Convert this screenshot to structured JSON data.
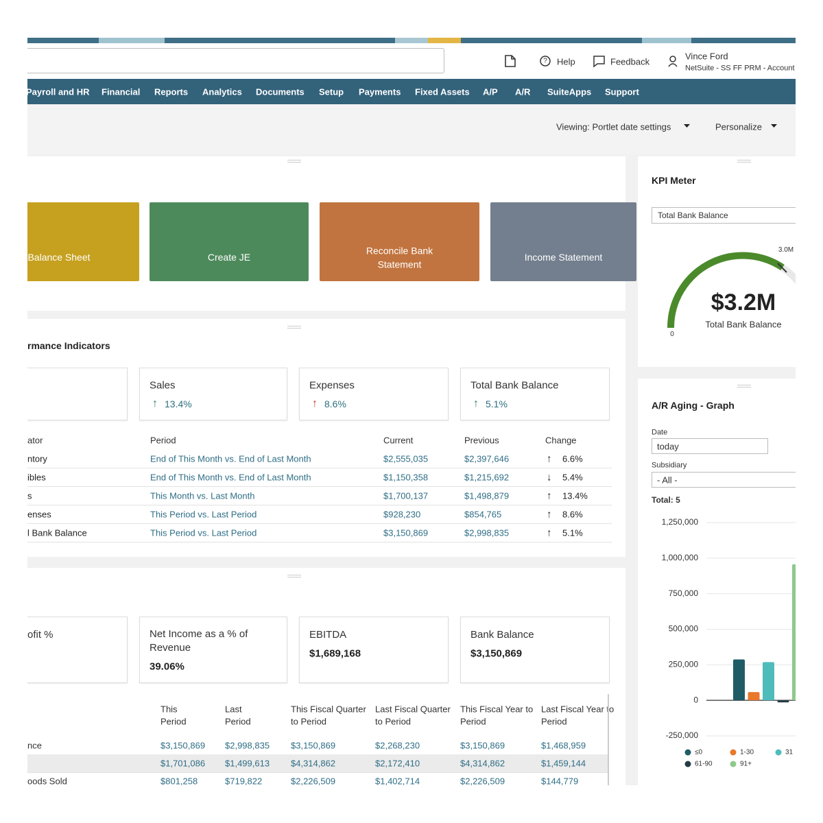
{
  "header": {
    "help": "Help",
    "feedback": "Feedback",
    "user_name": "Vince Ford",
    "account": "NetSuite - SS FF PRM - Account"
  },
  "nav": [
    "Payroll and HR",
    "Financial",
    "Reports",
    "Analytics",
    "Documents",
    "Setup",
    "Payments",
    "Fixed Assets",
    "A/P",
    "A/R",
    "SuiteApps",
    "Support"
  ],
  "toolbar": {
    "viewing": "Viewing: Portlet date settings",
    "personalize": "Personalize"
  },
  "shortcuts": [
    "Balance Sheet",
    "Create JE",
    "Reconcile Bank Statement",
    "Income Statement"
  ],
  "kpi_portlet": {
    "title": "rmance Indicators",
    "cards": [
      {
        "label": "Sales",
        "arrow": "↑",
        "change": "13.4%"
      },
      {
        "label": "Expenses",
        "arrow": "↑",
        "change": "8.6%"
      },
      {
        "label": "Total Bank Balance",
        "arrow": "↑",
        "change": "5.1%"
      }
    ],
    "columns": [
      "ator",
      "Period",
      "Current",
      "Previous",
      "Change"
    ],
    "rows": [
      [
        "ntory",
        "End of This Month vs. End of Last Month",
        "$2,555,035",
        "$2,397,646",
        "↑",
        "6.6%"
      ],
      [
        "ibles",
        "End of This Month vs. End of Last Month",
        "$1,150,358",
        "$1,215,692",
        "↓",
        "5.4%"
      ],
      [
        "s",
        "This Month vs. Last Month",
        "$1,700,137",
        "$1,498,879",
        "↑",
        "13.4%"
      ],
      [
        "enses",
        "This Period vs. Last Period",
        "$928,230",
        "$854,765",
        "↑",
        "8.6%"
      ],
      [
        "l Bank Balance",
        "This Period vs. Last Period",
        "$3,150,869",
        "$2,998,835",
        "↑",
        "5.1%"
      ]
    ]
  },
  "financial_portlet": {
    "cards": [
      {
        "label": "ofit %"
      },
      {
        "label": "Net Income as a % of Revenue",
        "value": "39.06%"
      },
      {
        "label": "EBITDA",
        "value": "$1,689,168"
      },
      {
        "label": "Bank Balance",
        "value": "$3,150,869"
      }
    ],
    "columns": [
      "This Period",
      "Last Period",
      "This Fiscal Quarter to Period",
      "Last Fiscal Quarter to Period",
      "This Fiscal Year to Period",
      "Last Fiscal Year to Period"
    ],
    "rows": [
      {
        "label": "nce",
        "cells": [
          "$3,150,869",
          "$2,998,835",
          "$3,150,869",
          "$2,268,230",
          "$3,150,869",
          "$1,468,959"
        ]
      },
      {
        "cells": [
          "$1,701,086",
          "$1,499,613",
          "$4,314,862",
          "$2,172,410",
          "$4,314,862",
          "$1,459,144"
        ]
      },
      {
        "label": "oods Sold",
        "cells": [
          "$801,258",
          "$719,822",
          "$2,226,509",
          "$1,402,714",
          "$2,226,509",
          "$144,779"
        ]
      }
    ]
  },
  "kpi_meter": {
    "title": "KPI Meter",
    "select": "Total Bank Balance",
    "max_label": "3.0M",
    "min_label": "0",
    "value": "$3.2M",
    "caption": "Total Bank Balance"
  },
  "ar_aging": {
    "title": "A/R Aging - Graph",
    "date_label": "Date",
    "date_value": "today",
    "subsidiary_label": "Subsidiary",
    "subsidiary_value": "- All -",
    "total": "Total: 5",
    "chart_data": {
      "type": "bar",
      "categories": [
        "≤0",
        "1-30",
        "31",
        "61-90",
        "91+"
      ],
      "values": [
        288000,
        58000,
        269000,
        -14000,
        957000
      ],
      "colors": [
        "#1f5c66",
        "#e8782a",
        "#4fbcbc",
        "#263b45",
        "#8dc98b"
      ],
      "ylim": [
        -250000,
        1250000
      ],
      "yticks": [
        {
          "value": -250000,
          "label": "-250,000"
        },
        0,
        {
          "value": 250000,
          "label": "250,000"
        },
        {
          "value": 500000,
          "label": "500,000"
        },
        {
          "value": 750000,
          "label": "750,000"
        },
        {
          "value": 1000000,
          "label": "1,000,000"
        },
        {
          "value": 1250000,
          "label": "1,250,000"
        }
      ],
      "grid": true
    }
  }
}
